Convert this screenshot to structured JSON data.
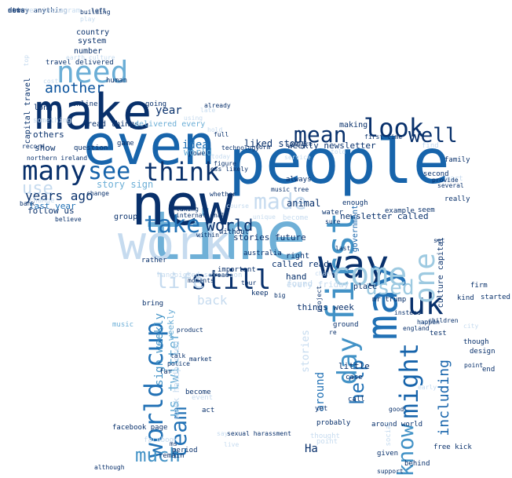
{
  "words": [
    {
      "text": "people",
      "color": "#1764ab"
    },
    {
      "text": "time",
      "color": "#6fb0d7"
    },
    {
      "text": "even",
      "color": "#1764ab"
    },
    {
      "text": "new",
      "color": "#08306b"
    },
    {
      "text": "make",
      "color": "#08306b"
    },
    {
      "text": "work",
      "color": "#c6dbef"
    },
    {
      "text": "way",
      "color": "#08306b"
    },
    {
      "text": "first",
      "color": "#4292c6"
    },
    {
      "text": "think",
      "color": "#08306b"
    },
    {
      "text": "many",
      "color": "#08306b"
    },
    {
      "text": "take",
      "color": "#2171b5"
    },
    {
      "text": "need",
      "color": "#6baed6"
    },
    {
      "text": "see",
      "color": "#1764ab"
    },
    {
      "text": "may",
      "color": "#2171b5"
    },
    {
      "text": "look",
      "color": "#08306b"
    },
    {
      "text": "still",
      "color": "#08306b"
    },
    {
      "text": "come",
      "color": "#9ecae1"
    },
    {
      "text": "uk",
      "color": "#08306b"
    },
    {
      "text": "mean",
      "color": "#08306b"
    },
    {
      "text": "well",
      "color": "#08306b"
    },
    {
      "text": "made",
      "color": "#c6dbef"
    },
    {
      "text": "one",
      "color": "#9ecae1"
    },
    {
      "text": "day",
      "color": "#4292c6"
    },
    {
      "text": "used",
      "color": "#9ecae1"
    },
    {
      "text": "world cup",
      "color": "#2171b5"
    },
    {
      "text": "might",
      "color": "#1764ab"
    },
    {
      "text": "know",
      "color": "#4292c6"
    },
    {
      "text": "team",
      "color": "#2171b5"
    },
    {
      "text": "much",
      "color": "#4292c6"
    },
    {
      "text": "life",
      "color": "#c6dbef"
    },
    {
      "text": "help",
      "color": "#2171b5"
    },
    {
      "text": "world",
      "color": "#08306b"
    },
    {
      "text": "use",
      "color": "#c6dbef"
    },
    {
      "text": "another",
      "color": "#08519c"
    },
    {
      "text": "years ago",
      "color": "#08306b"
    },
    {
      "text": "idea",
      "color": "#2171b5"
    },
    {
      "text": "back",
      "color": "#c6dbef"
    },
    {
      "text": "year",
      "color": "#08306b"
    },
    {
      "text": "including",
      "color": "#1764ab"
    },
    {
      "text": "animal",
      "color": "#08306b"
    },
    {
      "text": "liked story",
      "color": "#08306b"
    },
    {
      "text": "us twitter",
      "color": "#6baed6"
    },
    {
      "text": "Ha",
      "color": "#08306b"
    },
    {
      "text": "sign weekly",
      "color": "#4292c6"
    },
    {
      "text": "weekly newsletter",
      "color": "#08306b"
    },
    {
      "text": "newsletter called",
      "color": "#08306b"
    },
    {
      "text": "around",
      "color": "#2171b5"
    },
    {
      "text": "story sign",
      "color": "#6baed6"
    },
    {
      "text": "show",
      "color": "#08306b"
    },
    {
      "text": "last year",
      "color": "#2171b5"
    },
    {
      "text": "others",
      "color": "#08306b"
    },
    {
      "text": "follow us",
      "color": "#08306b"
    },
    {
      "text": "change",
      "color": "#c6dbef"
    },
    {
      "text": "called read",
      "color": "#08306b"
    },
    {
      "text": "hand",
      "color": "#08306b"
    },
    {
      "text": "right",
      "color": "#08306b"
    },
    {
      "text": "really",
      "color": "#08306b"
    },
    {
      "text": "example",
      "color": "#08306b"
    },
    {
      "text": "seem",
      "color": "#08306b"
    },
    {
      "text": "stories future",
      "color": "#08306b"
    },
    {
      "text": "found",
      "color": "#c6dbef"
    },
    {
      "text": "group",
      "color": "#08306b"
    },
    {
      "text": "rather",
      "color": "#08306b"
    },
    {
      "text": "little",
      "color": "#08306b"
    },
    {
      "text": "things week",
      "color": "#08306b"
    },
    {
      "text": "become",
      "color": "#08306b"
    },
    {
      "text": "country",
      "color": "#08306b"
    },
    {
      "text": "system",
      "color": "#08306b"
    },
    {
      "text": "number",
      "color": "#08306b"
    },
    {
      "text": "read things",
      "color": "#08306b"
    },
    {
      "text": "delivered every",
      "color": "#6baed6"
    },
    {
      "text": "human",
      "color": "#08306b"
    },
    {
      "text": "making",
      "color": "#08306b"
    },
    {
      "text": "form",
      "color": "#08306b"
    },
    {
      "text": "power",
      "color": "#08306b"
    },
    {
      "text": "always",
      "color": "#08306b"
    },
    {
      "text": "world",
      "color": "#6baed6"
    },
    {
      "text": "test",
      "color": "#08306b"
    },
    {
      "text": "family",
      "color": "#08306b"
    },
    {
      "text": "end",
      "color": "#08306b"
    },
    {
      "text": "though",
      "color": "#08306b"
    },
    {
      "text": "yet",
      "color": "#08306b"
    },
    {
      "text": "place",
      "color": "#08306b"
    },
    {
      "text": "every friday",
      "color": "#c6dbef"
    },
    {
      "text": "culture capital",
      "color": "#08306b"
    },
    {
      "text": "government",
      "color": "#1764ab"
    },
    {
      "text": "find",
      "color": "#c6dbef"
    },
    {
      "text": "ground",
      "color": "#08306b"
    },
    {
      "text": "weekly",
      "color": "#6baed6"
    },
    {
      "text": "week handpicked",
      "color": "#c6dbef"
    },
    {
      "text": "handpicked selection",
      "color": "#c6dbef"
    },
    {
      "text": "stories",
      "color": "#c6dbef"
    },
    {
      "text": "travel delivered",
      "color": "#08306b"
    },
    {
      "text": "capital travel",
      "color": "#08306b"
    },
    {
      "text": "long",
      "color": "#08306b"
    },
    {
      "text": "question",
      "color": "#08306b"
    },
    {
      "text": "without",
      "color": "#08306b"
    },
    {
      "text": "water",
      "color": "#08306b"
    },
    {
      "text": "enough",
      "color": "#08306b"
    },
    {
      "text": "mr trump",
      "color": "#08306b"
    },
    {
      "text": "kind",
      "color": "#08306b"
    },
    {
      "text": "firm",
      "color": "#08306b"
    },
    {
      "text": "started",
      "color": "#08306b"
    },
    {
      "text": "point",
      "color": "#c6dbef"
    },
    {
      "text": "probably",
      "color": "#08306b"
    },
    {
      "text": "thought",
      "color": "#c6dbef"
    },
    {
      "text": "part",
      "color": "#c6dbef"
    },
    {
      "text": "para",
      "color": "#c6dbef"
    },
    {
      "text": "design",
      "color": "#08306b"
    },
    {
      "text": "going",
      "color": "#08306b"
    },
    {
      "text": "case",
      "color": "#08306b"
    },
    {
      "text": "call",
      "color": "#08306b"
    },
    {
      "text": "far",
      "color": "#08306b"
    },
    {
      "text": "game",
      "color": "#08306b"
    },
    {
      "text": "online",
      "color": "#08306b"
    },
    {
      "text": "something",
      "color": "#c6dbef"
    },
    {
      "text": "important",
      "color": "#08306b"
    },
    {
      "text": "keep",
      "color": "#08306b"
    },
    {
      "text": "around world",
      "color": "#08306b"
    },
    {
      "text": "australia",
      "color": "#08306b"
    },
    {
      "text": "bring",
      "color": "#08306b"
    },
    {
      "text": "music",
      "color": "#6baed6"
    },
    {
      "text": "period",
      "color": "#08306b"
    },
    {
      "text": "remain",
      "color": "#08306b"
    },
    {
      "text": "support",
      "color": "#08306b"
    },
    {
      "text": "free kick",
      "color": "#08306b"
    },
    {
      "text": "given",
      "color": "#08306b"
    },
    {
      "text": "behind",
      "color": "#08306b"
    },
    {
      "text": "social",
      "color": "#c6dbef"
    },
    {
      "text": "facebook page",
      "color": "#08306b"
    },
    {
      "text": "facebook",
      "color": "#c6dbef"
    },
    {
      "text": "act",
      "color": "#08306b"
    },
    {
      "text": "bank",
      "color": "#08306b"
    },
    {
      "text": "change",
      "color": "#08306b"
    },
    {
      "text": "technology",
      "color": "#08306b"
    },
    {
      "text": "first time",
      "color": "#08306b"
    },
    {
      "text": "told",
      "color": "#c6dbef"
    },
    {
      "text": "several",
      "color": "#08306b"
    },
    {
      "text": "second",
      "color": "#08306b"
    },
    {
      "text": "today",
      "color": "#c6dbef"
    },
    {
      "text": "figure",
      "color": "#08306b"
    },
    {
      "text": "within",
      "color": "#08306b"
    },
    {
      "text": "building",
      "color": "#08306b"
    },
    {
      "text": "play",
      "color": "#c6dbef"
    },
    {
      "text": "top",
      "color": "#c6dbef"
    },
    {
      "text": "earth culture",
      "color": "#c6dbef"
    },
    {
      "text": "cost",
      "color": "#c6dbef"
    },
    {
      "text": "northern ireland",
      "color": "#08306b"
    },
    {
      "text": "believe",
      "color": "#08306b"
    },
    {
      "text": "product",
      "color": "#08306b"
    },
    {
      "text": "talk",
      "color": "#08306b"
    },
    {
      "text": "police",
      "color": "#08306b"
    },
    {
      "text": "market",
      "color": "#08306b"
    },
    {
      "text": "event",
      "color": "#c6dbef"
    },
    {
      "text": "chance",
      "color": "#c6dbef"
    },
    {
      "text": "become",
      "color": "#c6dbef"
    },
    {
      "text": "tour",
      "color": "#08306b"
    },
    {
      "text": "road",
      "color": "#08306b"
    },
    {
      "text": "set",
      "color": "#08306b"
    },
    {
      "text": "re",
      "color": "#08306b"
    },
    {
      "text": "children",
      "color": "#08306b"
    },
    {
      "text": "instead",
      "color": "#08306b"
    },
    {
      "text": "project",
      "color": "#08306b"
    },
    {
      "text": "happen",
      "color": "#08306b"
    },
    {
      "text": "england",
      "color": "#08306b"
    },
    {
      "text": "city",
      "color": "#c6dbef"
    },
    {
      "text": "early",
      "color": "#c6dbef"
    },
    {
      "text": "point",
      "color": "#08306b"
    },
    {
      "text": "good",
      "color": "#08306b"
    },
    {
      "text": "last",
      "color": "#08306b"
    },
    {
      "text": "big",
      "color": "#08306b"
    },
    {
      "text": "sure",
      "color": "#08306b"
    },
    {
      "text": "office",
      "color": "#08306b"
    },
    {
      "text": "service",
      "color": "#c6dbef"
    },
    {
      "text": "although",
      "color": "#08306b"
    },
    {
      "text": "live",
      "color": "#c6dbef"
    },
    {
      "text": "say",
      "color": "#c6dbef"
    },
    {
      "text": "sexual harassment",
      "color": "#08306b"
    },
    {
      "text": "music tree",
      "color": "#08306b"
    },
    {
      "text": "moments",
      "color": "#08306b"
    },
    {
      "text": "ms",
      "color": "#08306b"
    },
    {
      "text": "using",
      "color": "#c6dbef"
    },
    {
      "text": "late",
      "color": "#c6dbef"
    },
    {
      "text": "hold",
      "color": "#c6dbef"
    },
    {
      "text": "full",
      "color": "#08306b"
    },
    {
      "text": "less likely",
      "color": "#08306b"
    },
    {
      "text": "course",
      "color": "#c6dbef"
    },
    {
      "text": "provide",
      "color": "#08306b"
    },
    {
      "text": "whether",
      "color": "#08306b"
    },
    {
      "text": "already",
      "color": "#08306b"
    },
    {
      "text": "left",
      "color": "#08306b"
    },
    {
      "text": "record",
      "color": "#08306b"
    },
    {
      "text": "taking",
      "color": "#08306b"
    },
    {
      "text": "international",
      "color": "#08306b"
    },
    {
      "text": "unique",
      "color": "#c6dbef"
    },
    {
      "text": "story anything",
      "color": "#08306b"
    },
    {
      "text": "twitter instagram",
      "color": "#c6dbef"
    },
    {
      "text": "news",
      "color": "#08306b"
    },
    {
      "text": "data",
      "color": "#08306b"
    }
  ]
}
